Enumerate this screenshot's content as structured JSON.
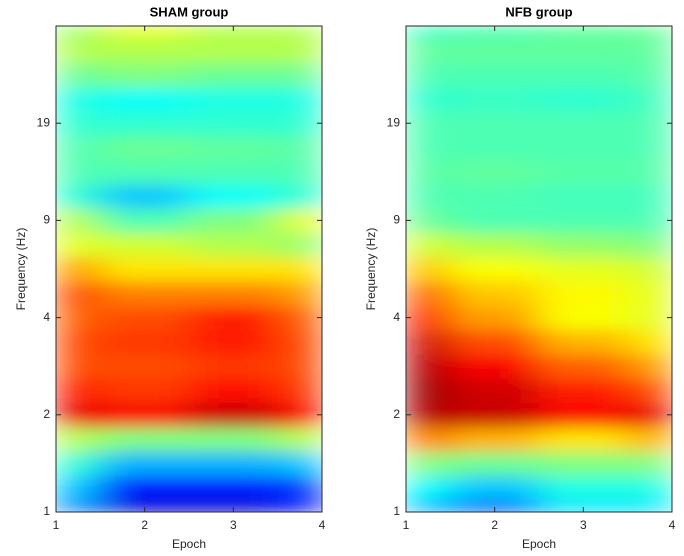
{
  "chart_data": [
    {
      "type": "heatmap",
      "title": "SHAM group",
      "xlabel": "Epoch",
      "ylabel": "Frequency (Hz)",
      "colormap": "jet",
      "zlim": [
        0,
        1
      ],
      "x": [
        1,
        2,
        3,
        4
      ],
      "xlim": [
        1,
        4
      ],
      "xticks": [
        1,
        2,
        3,
        4
      ],
      "y": [
        1,
        1.25,
        1.5,
        1.75,
        2,
        2.25,
        2.5,
        2.75,
        3,
        3.25,
        3.5,
        3.75,
        4,
        4.25,
        4.5,
        4.75,
        5,
        5.25,
        5.5,
        5.75,
        6
      ],
      "ylim": [
        1,
        6
      ],
      "yticks": [
        1,
        2,
        {
          "value": 3,
          "label": "4"
        },
        {
          "value": 4,
          "label": "9"
        },
        {
          "value": 5,
          "label": "19"
        }
      ],
      "z": [
        [
          0.25,
          0.08,
          0.08,
          0.12
        ],
        [
          0.32,
          0.15,
          0.15,
          0.18
        ],
        [
          0.42,
          0.3,
          0.3,
          0.32
        ],
        [
          0.55,
          0.5,
          0.5,
          0.55
        ],
        [
          0.9,
          0.88,
          0.93,
          0.88
        ],
        [
          0.85,
          0.82,
          0.86,
          0.82
        ],
        [
          0.8,
          0.8,
          0.82,
          0.8
        ],
        [
          0.8,
          0.82,
          0.85,
          0.8
        ],
        [
          0.78,
          0.8,
          0.85,
          0.78
        ],
        [
          0.8,
          0.75,
          0.75,
          0.72
        ],
        [
          0.72,
          0.65,
          0.65,
          0.65
        ],
        [
          0.6,
          0.58,
          0.55,
          0.52
        ],
        [
          0.55,
          0.45,
          0.5,
          0.6
        ],
        [
          0.42,
          0.32,
          0.38,
          0.42
        ],
        [
          0.45,
          0.45,
          0.45,
          0.45
        ],
        [
          0.45,
          0.48,
          0.47,
          0.46
        ],
        [
          0.42,
          0.42,
          0.42,
          0.42
        ],
        [
          0.4,
          0.38,
          0.4,
          0.4
        ],
        [
          0.48,
          0.5,
          0.48,
          0.48
        ],
        [
          0.55,
          0.55,
          0.55,
          0.55
        ],
        [
          0.52,
          0.6,
          0.55,
          0.55
        ]
      ]
    },
    {
      "type": "heatmap",
      "title": "NFB group",
      "xlabel": "Epoch",
      "ylabel": "Frequency (Hz)",
      "colormap": "jet",
      "zlim": [
        0,
        1
      ],
      "x": [
        1,
        2,
        3,
        4
      ],
      "xlim": [
        1,
        4
      ],
      "xticks": [
        1,
        2,
        3,
        4
      ],
      "y": [
        1,
        1.25,
        1.5,
        1.75,
        2,
        2.25,
        2.5,
        2.75,
        3,
        3.25,
        3.5,
        3.75,
        4,
        4.25,
        4.5,
        4.75,
        5,
        5.25,
        5.5,
        5.75,
        6
      ],
      "ylim": [
        1,
        6
      ],
      "yticks": [
        1,
        2,
        {
          "value": 3,
          "label": "4"
        },
        {
          "value": 4,
          "label": "9"
        },
        {
          "value": 5,
          "label": "19"
        }
      ],
      "z": [
        [
          0.3,
          0.22,
          0.35,
          0.35
        ],
        [
          0.38,
          0.32,
          0.4,
          0.4
        ],
        [
          0.5,
          0.48,
          0.5,
          0.5
        ],
        [
          0.75,
          0.7,
          0.65,
          0.7
        ],
        [
          0.95,
          0.93,
          0.88,
          0.9
        ],
        [
          0.97,
          0.92,
          0.85,
          0.8
        ],
        [
          0.95,
          0.88,
          0.78,
          0.72
        ],
        [
          0.92,
          0.8,
          0.7,
          0.65
        ],
        [
          0.85,
          0.72,
          0.62,
          0.6
        ],
        [
          0.78,
          0.68,
          0.63,
          0.6
        ],
        [
          0.68,
          0.62,
          0.6,
          0.58
        ],
        [
          0.58,
          0.55,
          0.52,
          0.5
        ],
        [
          0.48,
          0.45,
          0.45,
          0.45
        ],
        [
          0.45,
          0.45,
          0.44,
          0.44
        ],
        [
          0.46,
          0.47,
          0.46,
          0.46
        ],
        [
          0.45,
          0.45,
          0.45,
          0.45
        ],
        [
          0.45,
          0.45,
          0.45,
          0.45
        ],
        [
          0.42,
          0.43,
          0.42,
          0.44
        ],
        [
          0.45,
          0.45,
          0.45,
          0.46
        ],
        [
          0.47,
          0.47,
          0.47,
          0.47
        ],
        [
          0.43,
          0.45,
          0.47,
          0.48
        ]
      ]
    }
  ]
}
